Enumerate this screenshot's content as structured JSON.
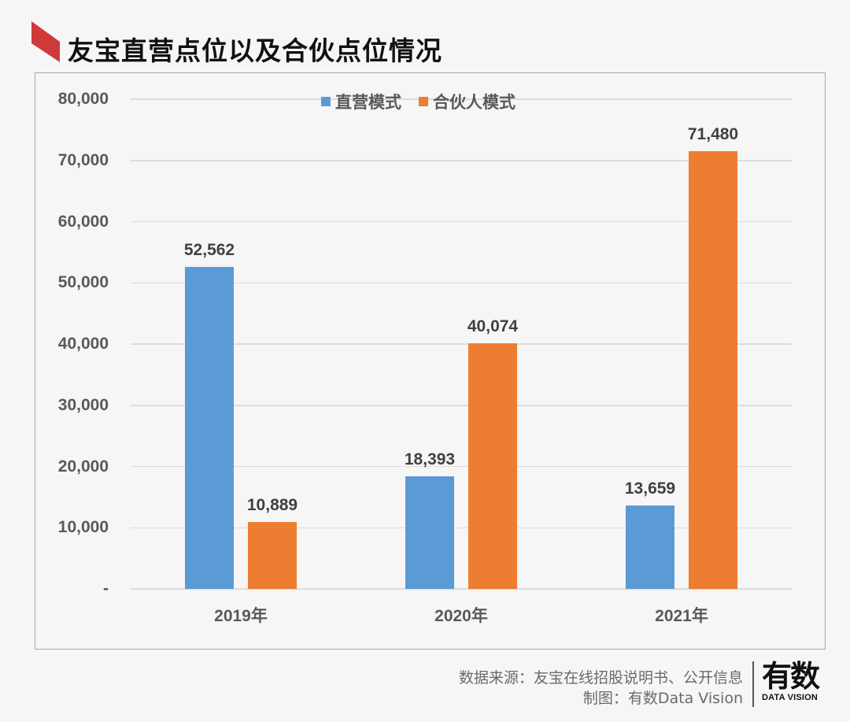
{
  "title": "友宝直营点位以及合伙点位情况",
  "colors": {
    "accent": "#d0393a",
    "series_blue": "#5b9bd5",
    "series_orange": "#ed7d31"
  },
  "chart_data": {
    "type": "bar",
    "title": "友宝直营点位以及合伙点位情况",
    "categories": [
      "2019年",
      "2020年",
      "2021年"
    ],
    "series": [
      {
        "name": "直营模式",
        "color": "#5b9bd5",
        "values": [
          52562,
          18393,
          13659
        ],
        "labels": [
          "52,562",
          "18,393",
          "13,659"
        ]
      },
      {
        "name": "合伙人模式",
        "color": "#ed7d31",
        "values": [
          10889,
          40074,
          71480
        ],
        "labels": [
          "10,889",
          "40,074",
          "71,480"
        ]
      }
    ],
    "xlabel": "",
    "ylabel": "",
    "ylim": [
      0,
      80000
    ],
    "yticks": [
      "-",
      "10,000",
      "20,000",
      "30,000",
      "40,000",
      "50,000",
      "60,000",
      "70,000",
      "80,000"
    ],
    "grid": true,
    "legend_position": "top"
  },
  "legend": [
    {
      "label": "直营模式"
    },
    {
      "label": "合伙人模式"
    }
  ],
  "footer": {
    "source": "数据来源：友宝在线招股说明书、公开信息",
    "credit": "制图：有数Data Vision",
    "logo_cn": "有数",
    "logo_en": "DATA VISION"
  }
}
